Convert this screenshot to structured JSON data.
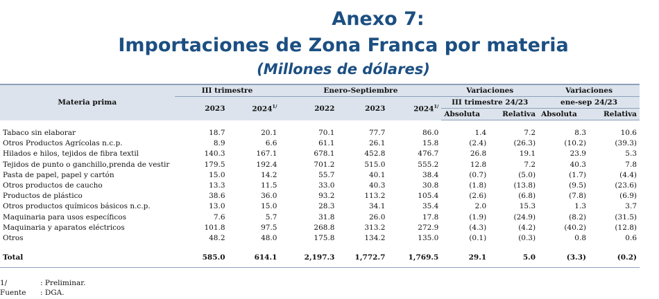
{
  "title": {
    "line1": "Anexo 7:",
    "line2": "Importaciones de Zona Franca por materia",
    "line3": "(Millones de dólares)"
  },
  "header": {
    "materia": "Materia prima",
    "g_trimestre": "III trimestre",
    "g_enero": "Enero-Septiembre",
    "g_var1": "Variaciones",
    "g_var2": "Variaciones",
    "sub_var1": "III trimestre 24/23",
    "sub_var2": "ene-sep 24/23",
    "y2023a": "2023",
    "y2024a": "2024",
    "y2022": "2022",
    "y2023b": "2023",
    "y2024b": "2024",
    "sup_note": "1/",
    "absoluta1": "Absoluta",
    "relativa1": "Relativa",
    "absoluta2": "Absoluta",
    "relativa2": "Relativa"
  },
  "rows": [
    {
      "label": "Tabaco sin elaborar",
      "v": [
        "18.7",
        "20.1",
        "70.1",
        "77.7",
        "86.0",
        "1.4",
        "7.2",
        "8.3",
        "10.6"
      ]
    },
    {
      "label": "Otros Productos Agrícolas n.c.p.",
      "v": [
        "8.9",
        "6.6",
        "61.1",
        "26.1",
        "15.8",
        "(2.4)",
        "(26.3)",
        "(10.2)",
        "(39.3)"
      ]
    },
    {
      "label": "Hilados e hilos, tejidos de fibra textil",
      "v": [
        "140.3",
        "167.1",
        "678.1",
        "452.8",
        "476.7",
        "26.8",
        "19.1",
        "23.9",
        "5.3"
      ]
    },
    {
      "label": "Tejidos de punto o ganchillo,prenda de vestir",
      "v": [
        "179.5",
        "192.4",
        "701.2",
        "515.0",
        "555.2",
        "12.8",
        "7.2",
        "40.3",
        "7.8"
      ]
    },
    {
      "label": "Pasta de papel, papel y cartón",
      "v": [
        "15.0",
        "14.2",
        "55.7",
        "40.1",
        "38.4",
        "(0.7)",
        "(5.0)",
        "(1.7)",
        "(4.4)"
      ]
    },
    {
      "label": "Otros productos de caucho",
      "v": [
        "13.3",
        "11.5",
        "33.0",
        "40.3",
        "30.8",
        "(1.8)",
        "(13.8)",
        "(9.5)",
        "(23.6)"
      ]
    },
    {
      "label": "Productos de plástico",
      "v": [
        "38.6",
        "36.0",
        "93.2",
        "113.2",
        "105.4",
        "(2.6)",
        "(6.8)",
        "(7.8)",
        "(6.9)"
      ]
    },
    {
      "label": "Otros productos químicos básicos n.c.p.",
      "v": [
        "13.0",
        "15.0",
        "28.3",
        "34.1",
        "35.4",
        "2.0",
        "15.3",
        "1.3",
        "3.7"
      ]
    },
    {
      "label": "Maquinaria para usos específicos",
      "v": [
        "7.6",
        "5.7",
        "31.8",
        "26.0",
        "17.8",
        "(1.9)",
        "(24.9)",
        "(8.2)",
        "(31.5)"
      ]
    },
    {
      "label": "Maquinaria y aparatos eléctricos",
      "v": [
        "101.8",
        "97.5",
        "268.8",
        "313.2",
        "272.9",
        "(4.3)",
        "(4.2)",
        "(40.2)",
        "(12.8)"
      ]
    },
    {
      "label": "Otros",
      "v": [
        "48.2",
        "48.0",
        "175.8",
        "134.2",
        "135.0",
        "(0.1)",
        "(0.3)",
        "0.8",
        "0.6"
      ]
    }
  ],
  "total": {
    "label": "Total",
    "v": [
      "585.0",
      "614.1",
      "2,197.3",
      "1,772.7",
      "1,769.5",
      "29.1",
      "5.0",
      "(3.3)",
      "(0.2)"
    ]
  },
  "notes": [
    {
      "key": "1/",
      "text": ": Preliminar."
    },
    {
      "key": "Fuente",
      "text": ": DGA."
    }
  ]
}
